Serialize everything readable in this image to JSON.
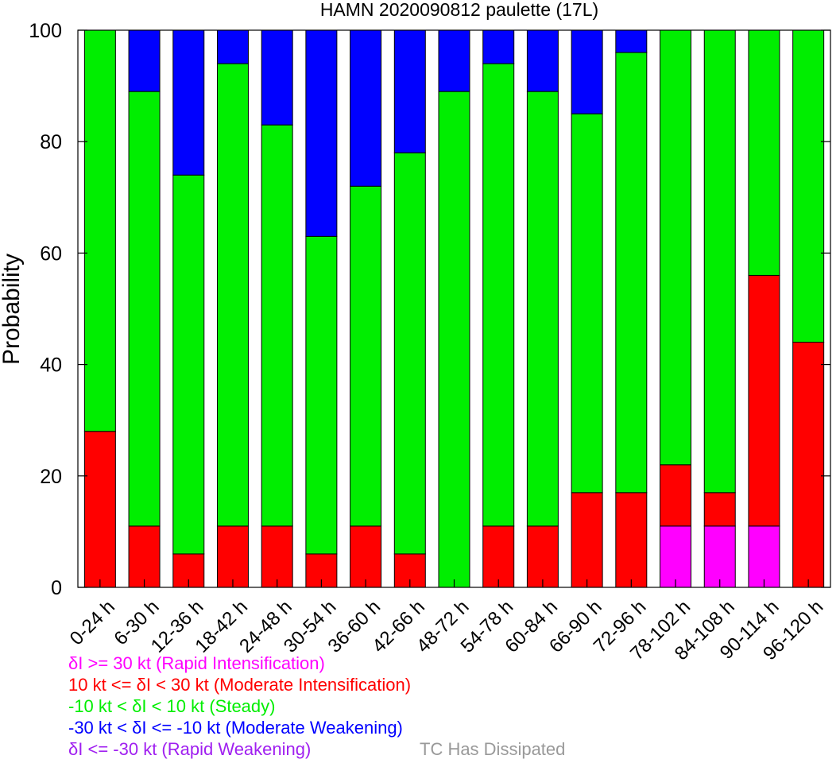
{
  "chart_data": {
    "type": "bar",
    "stacked": true,
    "title": "HAMN 2020090812 paulette (17L)",
    "xlabel": "",
    "ylabel": "Probability",
    "ylim": [
      0,
      100
    ],
    "yticks": [
      0,
      20,
      40,
      60,
      80,
      100
    ],
    "grid": false,
    "categories": [
      "0-24 h",
      "6-30 h",
      "12-36 h",
      "18-42 h",
      "24-48 h",
      "30-54 h",
      "36-60 h",
      "42-66 h",
      "48-72 h",
      "54-78 h",
      "60-84 h",
      "66-90 h",
      "72-96 h",
      "78-102 h",
      "84-108 h",
      "90-114 h",
      "96-120 h"
    ],
    "series": [
      {
        "name": "δI >= 30 kt (Rapid Intensification)",
        "color": "#ff00ff",
        "values": [
          0,
          0,
          0,
          0,
          0,
          0,
          0,
          0,
          0,
          0,
          0,
          0,
          0,
          11,
          11,
          11,
          0
        ]
      },
      {
        "name": "10 kt <= δI < 30 kt (Moderate Intensification)",
        "color": "#ff0000",
        "values": [
          28,
          11,
          6,
          11,
          11,
          6,
          11,
          6,
          0,
          11,
          11,
          17,
          17,
          11,
          6,
          45,
          44
        ]
      },
      {
        "name": "-10 kt < δI < 10 kt (Steady)",
        "color": "#00ee00",
        "values": [
          72,
          78,
          68,
          83,
          72,
          57,
          61,
          72,
          89,
          83,
          78,
          68,
          79,
          78,
          83,
          44,
          56
        ]
      },
      {
        "name": "-30 kt < δI <= -10 kt (Moderate Weakening)",
        "color": "#0000ff",
        "values": [
          0,
          11,
          26,
          6,
          17,
          37,
          28,
          22,
          11,
          6,
          11,
          15,
          4,
          0,
          0,
          0,
          0
        ]
      },
      {
        "name": "δI <= -30 kt (Rapid Weakening)",
        "color": "#a020f0",
        "values": [
          0,
          0,
          0,
          0,
          0,
          0,
          0,
          0,
          0,
          0,
          0,
          0,
          0,
          0,
          0,
          0,
          0
        ]
      }
    ],
    "legend_position": "bottom-left",
    "extra_legend": {
      "label": "TC Has Dissipated",
      "color": "#999999"
    }
  }
}
